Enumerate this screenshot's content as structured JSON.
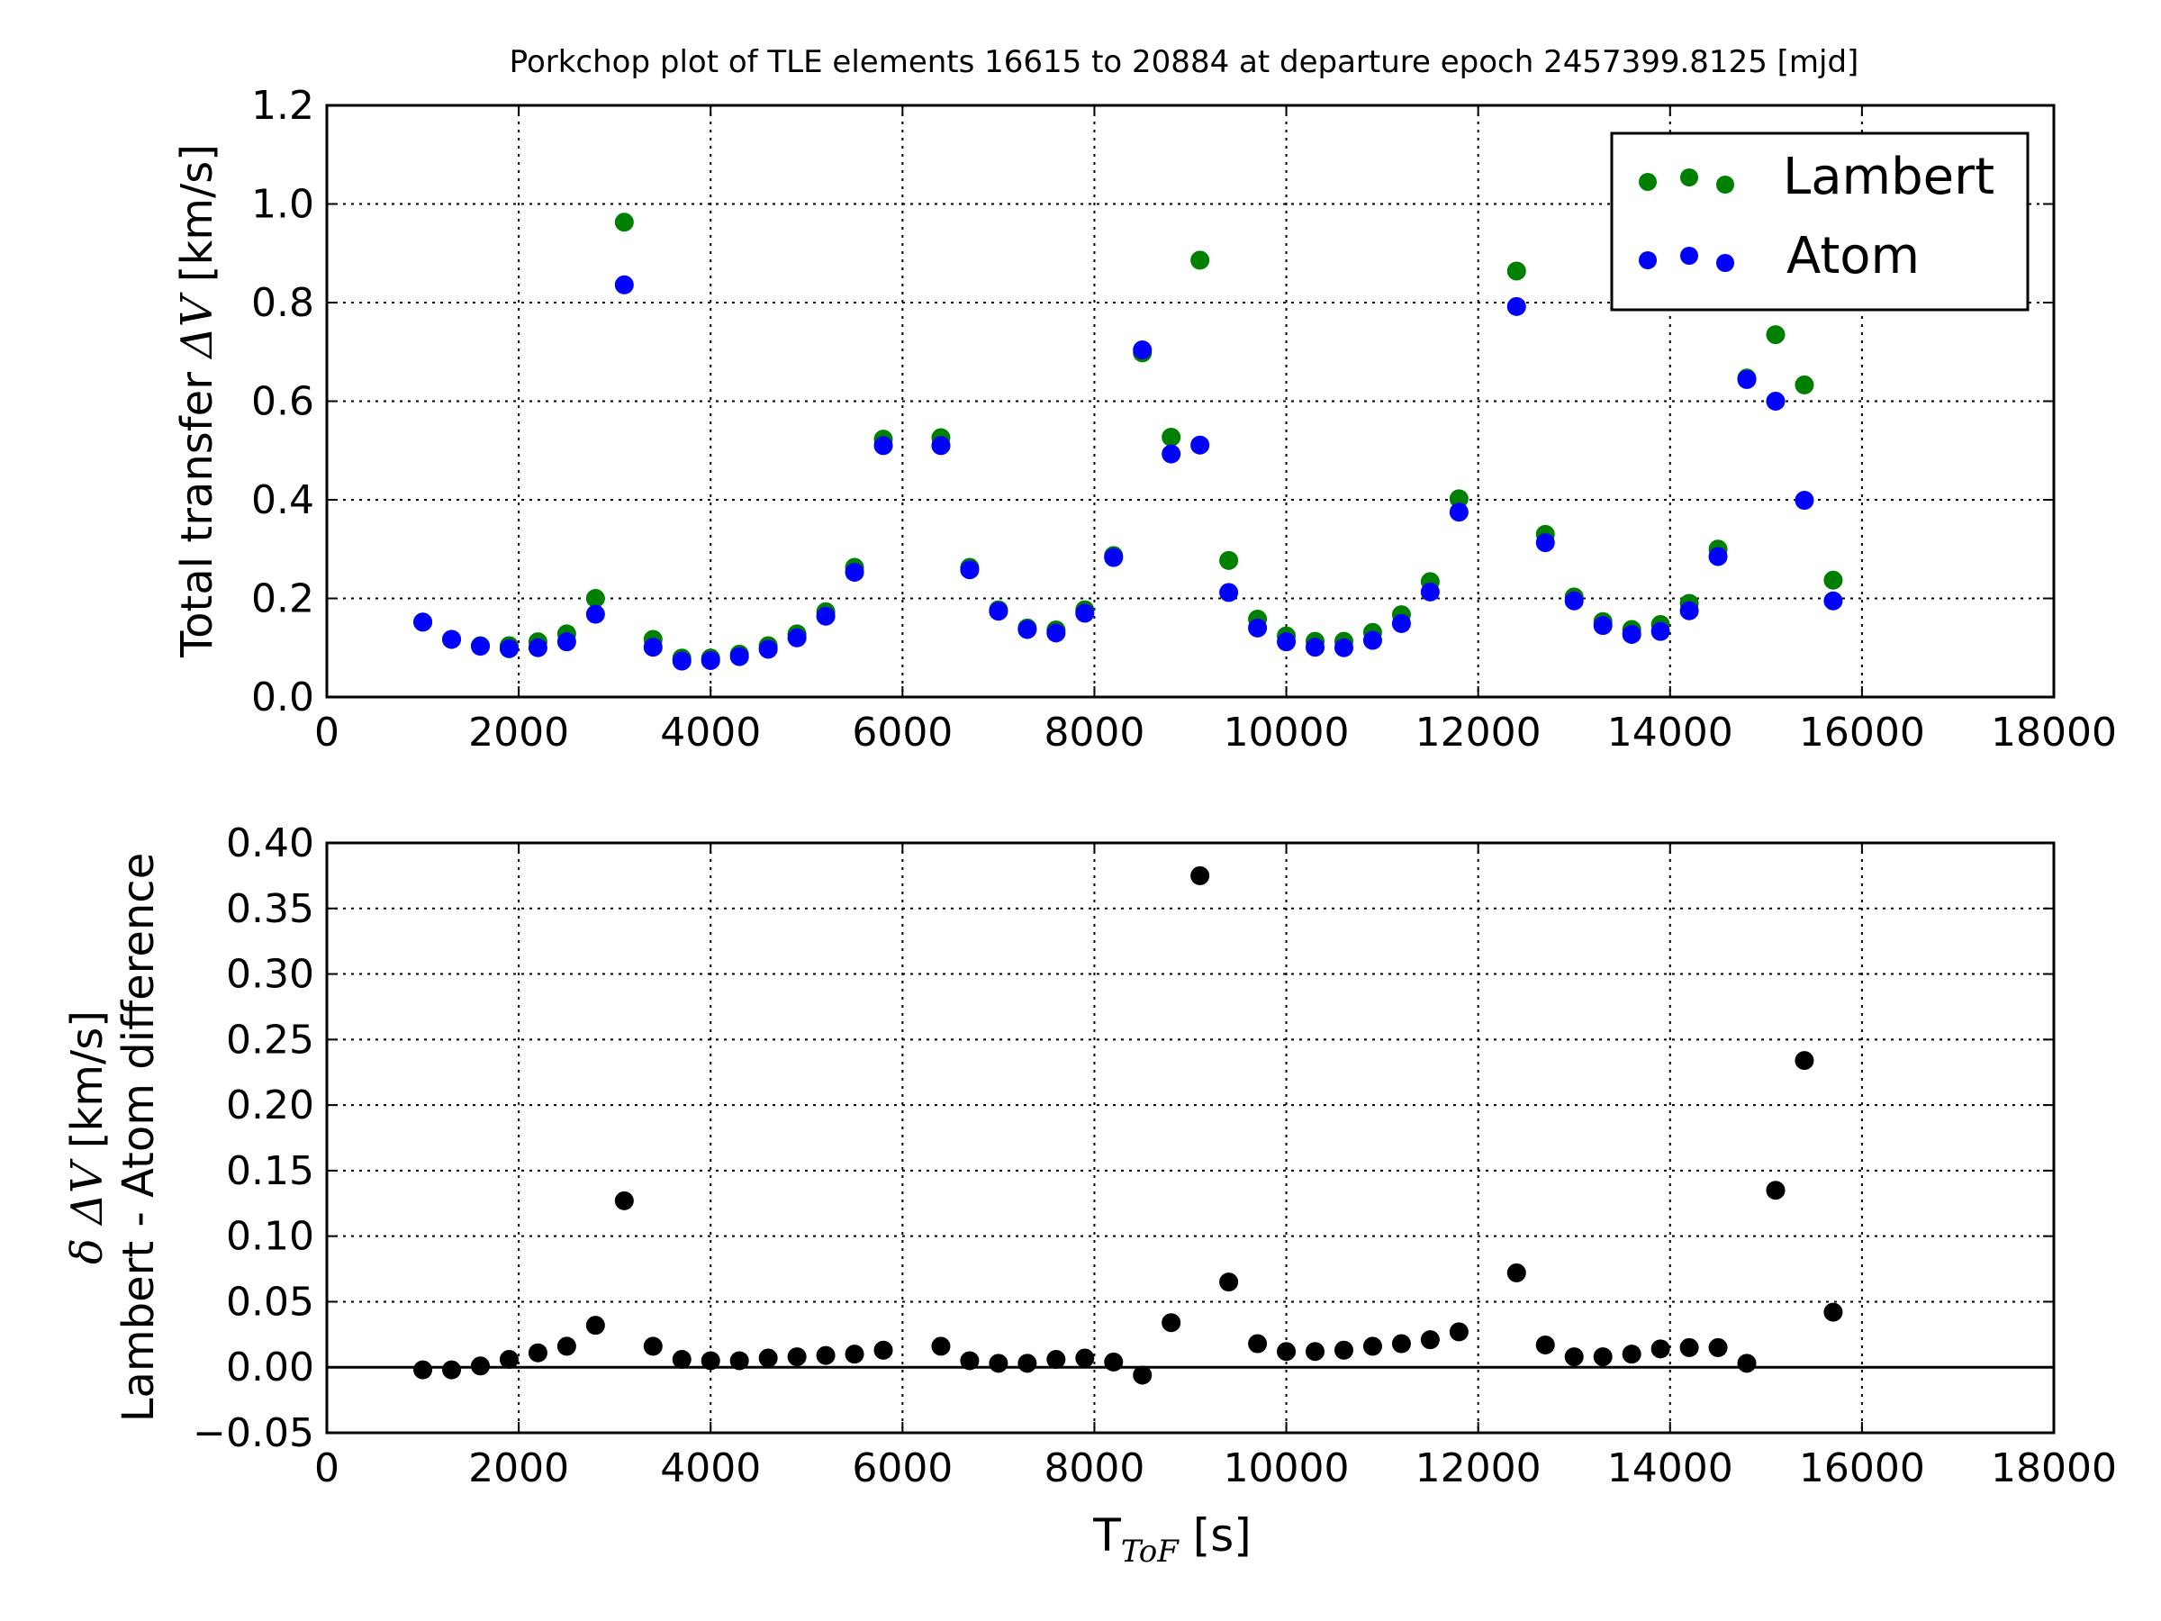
{
  "figure": {
    "title": "Porkchop plot of TLE elements 16615 to 20884 at departure epoch 2457399.8125 [mjd]"
  },
  "chart_data": [
    {
      "type": "scatter",
      "ylabel_parts": [
        "Total transfer ",
        "ΔV",
        " [km/s]"
      ],
      "xlim": [
        0,
        18000
      ],
      "ylim": [
        0.0,
        1.2
      ],
      "xticks": [
        0,
        2000,
        4000,
        6000,
        8000,
        10000,
        12000,
        14000,
        16000,
        18000
      ],
      "yticks": [
        0.0,
        0.2,
        0.4,
        0.6,
        0.8,
        1.0,
        1.2
      ],
      "grid": true,
      "legend_position": "top-right",
      "x": [
        1000,
        1300,
        1600,
        1900,
        2200,
        2500,
        2800,
        3100,
        3400,
        3700,
        4000,
        4300,
        4600,
        4900,
        5200,
        5500,
        5800,
        6400,
        6700,
        7000,
        7300,
        7600,
        7900,
        8200,
        8500,
        8800,
        9100,
        9400,
        9700,
        10000,
        10300,
        10600,
        10900,
        11200,
        11500,
        11800,
        12400,
        12700,
        13000,
        13300,
        13600,
        13900,
        14200,
        14500,
        14800,
        15100,
        15400,
        15700
      ],
      "series": [
        {
          "name": "Lambert",
          "color": "#008000",
          "values": [
            0.152,
            0.117,
            0.104,
            0.104,
            0.112,
            0.128,
            0.2,
            0.963,
            0.117,
            0.079,
            0.079,
            0.087,
            0.104,
            0.128,
            0.173,
            0.263,
            0.523,
            0.526,
            0.263,
            0.177,
            0.14,
            0.136,
            0.177,
            0.287,
            0.698,
            0.527,
            0.886,
            0.277,
            0.158,
            0.124,
            0.113,
            0.113,
            0.131,
            0.167,
            0.234,
            0.402,
            0.864,
            0.33,
            0.203,
            0.153,
            0.137,
            0.147,
            0.19,
            0.3,
            0.647,
            0.735,
            0.633,
            0.237
          ]
        },
        {
          "name": "Atom",
          "color": "#0000ff",
          "values": [
            0.152,
            0.117,
            0.103,
            0.098,
            0.1,
            0.112,
            0.168,
            0.836,
            0.101,
            0.073,
            0.074,
            0.082,
            0.097,
            0.12,
            0.164,
            0.253,
            0.51,
            0.51,
            0.258,
            0.174,
            0.137,
            0.13,
            0.17,
            0.283,
            0.704,
            0.493,
            0.511,
            0.212,
            0.14,
            0.112,
            0.101,
            0.1,
            0.115,
            0.149,
            0.213,
            0.375,
            0.792,
            0.313,
            0.195,
            0.145,
            0.127,
            0.133,
            0.175,
            0.285,
            0.644,
            0.6,
            0.399,
            0.195
          ]
        }
      ]
    },
    {
      "type": "scatter",
      "xlabel_main": "T",
      "xlabel_sub": "ToF",
      "xlabel_unit": " [s]",
      "ylabel_line1_parts": [
        "δ ΔV",
        " [km/s]"
      ],
      "ylabel_line2": "Lambert - Atom difference",
      "xlim": [
        0,
        18000
      ],
      "ylim": [
        -0.05,
        0.4
      ],
      "xticks": [
        0,
        2000,
        4000,
        6000,
        8000,
        10000,
        12000,
        14000,
        16000,
        18000
      ],
      "ytick_labels": [
        "−0.05",
        "0.00",
        "0.05",
        "0.10",
        "0.15",
        "0.20",
        "0.25",
        "0.30",
        "0.35",
        "0.40"
      ],
      "yticks": [
        -0.05,
        0.0,
        0.05,
        0.1,
        0.15,
        0.2,
        0.25,
        0.3,
        0.35,
        0.4
      ],
      "grid": true,
      "reference_line_y": 0.0,
      "x": [
        1000,
        1300,
        1600,
        1900,
        2200,
        2500,
        2800,
        3100,
        3400,
        3700,
        4000,
        4300,
        4600,
        4900,
        5200,
        5500,
        5800,
        6400,
        6700,
        7000,
        7300,
        7600,
        7900,
        8200,
        8500,
        8800,
        9100,
        9400,
        9700,
        10000,
        10300,
        10600,
        10900,
        11200,
        11500,
        11800,
        12400,
        12700,
        13000,
        13300,
        13600,
        13900,
        14200,
        14500,
        14800,
        15100,
        15400,
        15700
      ],
      "series": [
        {
          "color": "#000000",
          "values": [
            -0.002,
            -0.002,
            0.001,
            0.006,
            0.011,
            0.016,
            0.032,
            0.127,
            0.016,
            0.006,
            0.005,
            0.005,
            0.007,
            0.008,
            0.009,
            0.01,
            0.013,
            0.016,
            0.005,
            0.003,
            0.003,
            0.006,
            0.007,
            0.004,
            -0.006,
            0.034,
            0.375,
            0.065,
            0.018,
            0.012,
            0.012,
            0.013,
            0.016,
            0.018,
            0.021,
            0.027,
            0.072,
            0.017,
            0.008,
            0.008,
            0.01,
            0.014,
            0.015,
            0.015,
            0.003,
            0.135,
            0.234,
            0.042
          ]
        }
      ]
    }
  ]
}
